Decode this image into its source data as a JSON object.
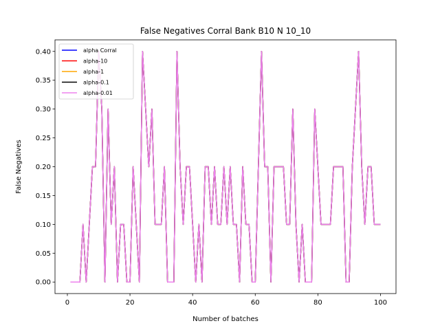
{
  "chart_data": {
    "type": "line",
    "title": "False Negatives Corral Bank B10 N 10_10",
    "xlabel": "Number of batches",
    "ylabel": "False Negatives",
    "xlim": [
      -3.95,
      104.95
    ],
    "ylim": [
      -0.02,
      0.42
    ],
    "xticks": [
      0,
      20,
      40,
      60,
      80,
      100
    ],
    "yticks": [
      0.0,
      0.05,
      0.1,
      0.15,
      0.2,
      0.25,
      0.3,
      0.35,
      0.4
    ],
    "ytick_labels": [
      "0.00",
      "0.05",
      "0.10",
      "0.15",
      "0.20",
      "0.25",
      "0.30",
      "0.35",
      "0.40"
    ],
    "legend_position": "top-left",
    "grid": false,
    "x": [
      1,
      2,
      3,
      4,
      5,
      6,
      7,
      8,
      9,
      10,
      11,
      12,
      13,
      14,
      15,
      16,
      17,
      18,
      19,
      20,
      21,
      22,
      23,
      24,
      25,
      26,
      27,
      28,
      29,
      30,
      31,
      32,
      33,
      34,
      35,
      36,
      37,
      38,
      39,
      40,
      41,
      42,
      43,
      44,
      45,
      46,
      47,
      48,
      49,
      50,
      51,
      52,
      53,
      54,
      55,
      56,
      57,
      58,
      59,
      60,
      61,
      62,
      63,
      64,
      65,
      66,
      67,
      68,
      69,
      70,
      71,
      72,
      73,
      74,
      75,
      76,
      77,
      78,
      79,
      80,
      81,
      82,
      83,
      84,
      85,
      86,
      87,
      88,
      89,
      90,
      91,
      92,
      93,
      94,
      95,
      96,
      97,
      98,
      99,
      100
    ],
    "y": [
      0.0,
      0.0,
      0.0,
      0.0,
      0.1,
      0.0,
      0.1,
      0.2,
      0.2,
      0.4,
      0.3,
      0.0,
      0.3,
      0.1,
      0.2,
      0.0,
      0.1,
      0.1,
      0.0,
      0.0,
      0.2,
      0.1,
      0.0,
      0.4,
      0.3,
      0.2,
      0.3,
      0.1,
      0.1,
      0.1,
      0.2,
      0.0,
      0.0,
      0.0,
      0.4,
      0.2,
      0.1,
      0.2,
      0.2,
      0.1,
      0.0,
      0.1,
      0.0,
      0.2,
      0.2,
      0.1,
      0.2,
      0.1,
      0.1,
      0.2,
      0.1,
      0.2,
      0.1,
      0.1,
      0.0,
      0.2,
      0.1,
      0.1,
      0.0,
      0.0,
      0.2,
      0.4,
      0.2,
      0.2,
      0.0,
      0.2,
      0.2,
      0.2,
      0.2,
      0.1,
      0.1,
      0.3,
      0.1,
      0.0,
      0.1,
      0.0,
      0.0,
      0.0,
      0.3,
      0.2,
      0.1,
      0.1,
      0.1,
      0.1,
      0.2,
      0.2,
      0.2,
      0.2,
      0.0,
      0.0,
      0.2,
      0.3,
      0.4,
      0.2,
      0.1,
      0.2,
      0.2,
      0.1,
      0.1,
      0.1
    ],
    "series": [
      {
        "name": "alpha Corral",
        "color": "#0000ff",
        "offset": 0.0
      },
      {
        "name": "alpha-10",
        "color": "#ff0000",
        "offset": 0.0
      },
      {
        "name": "alpha-1",
        "color": "#ffa500",
        "offset": 0.0
      },
      {
        "name": "alpha-0.1",
        "color": "#000000",
        "offset": 0.0
      },
      {
        "name": "alpha-0.01",
        "color": "#ee82ee",
        "offset": 0.0
      }
    ]
  }
}
